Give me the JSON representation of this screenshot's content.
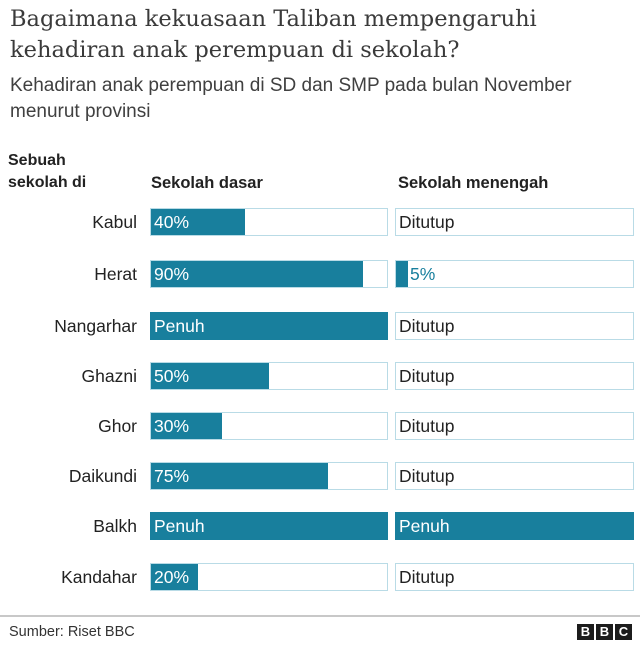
{
  "header": {
    "title": "Bagaimana kekuasaan Taliban mempengaruhi kehadiran anak perempuan di sekolah?",
    "subtitle": "Kehadiran anak perempuan di SD dan SMP pada bulan November menurut provinsi"
  },
  "columns": {
    "province": "Sebuah sekolah di",
    "primary": "Sekolah dasar",
    "secondary": "Sekolah menengah"
  },
  "colors": {
    "bar": "#187f9d",
    "border": "#b9dbe6"
  },
  "rows": [
    {
      "province": "Kabul",
      "primary": {
        "label": "40%",
        "pct": 40
      },
      "secondary": {
        "label": "Ditutup",
        "pct": 0
      }
    },
    {
      "province": "Herat",
      "primary": {
        "label": "90%",
        "pct": 90
      },
      "secondary": {
        "label": "5%",
        "pct": 5
      }
    },
    {
      "province": "Nangarhar",
      "primary": {
        "label": "Penuh",
        "pct": 100
      },
      "secondary": {
        "label": "Ditutup",
        "pct": 0
      }
    },
    {
      "province": "Ghazni",
      "primary": {
        "label": "50%",
        "pct": 50
      },
      "secondary": {
        "label": "Ditutup",
        "pct": 0
      }
    },
    {
      "province": "Ghor",
      "primary": {
        "label": "30%",
        "pct": 30
      },
      "secondary": {
        "label": "Ditutup",
        "pct": 0
      }
    },
    {
      "province": "Daikundi",
      "primary": {
        "label": "75%",
        "pct": 75
      },
      "secondary": {
        "label": "Ditutup",
        "pct": 0
      }
    },
    {
      "province": "Balkh",
      "primary": {
        "label": "Penuh",
        "pct": 100
      },
      "secondary": {
        "label": "Penuh",
        "pct": 100
      }
    },
    {
      "province": "Kandahar",
      "primary": {
        "label": "20%",
        "pct": 20
      },
      "secondary": {
        "label": "Ditutup",
        "pct": 0
      }
    }
  ],
  "footer": {
    "source": "Sumber: Riset BBC",
    "logo": [
      "B",
      "B",
      "C"
    ]
  },
  "chart_data": {
    "type": "bar",
    "title": "Bagaimana kekuasaan Taliban mempengaruhi kehadiran anak perempuan di sekolah?",
    "subtitle": "Kehadiran anak perempuan di SD dan SMP pada bulan November menurut provinsi",
    "categories": [
      "Kabul",
      "Herat",
      "Nangarhar",
      "Ghazni",
      "Ghor",
      "Daikundi",
      "Balkh",
      "Kandahar"
    ],
    "series": [
      {
        "name": "Sekolah dasar",
        "values": [
          40,
          90,
          100,
          50,
          30,
          75,
          100,
          20
        ],
        "labels": [
          "40%",
          "90%",
          "Penuh",
          "50%",
          "30%",
          "75%",
          "Penuh",
          "20%"
        ]
      },
      {
        "name": "Sekolah menengah",
        "values": [
          0,
          5,
          0,
          0,
          0,
          0,
          100,
          0
        ],
        "labels": [
          "Ditutup",
          "5%",
          "Ditutup",
          "Ditutup",
          "Ditutup",
          "Ditutup",
          "Penuh",
          "Ditutup"
        ]
      }
    ],
    "xlabel": "",
    "ylabel": "Sebuah sekolah di",
    "xlim": [
      0,
      100
    ],
    "orientation": "horizontal",
    "source": "Sumber: Riset BBC"
  }
}
